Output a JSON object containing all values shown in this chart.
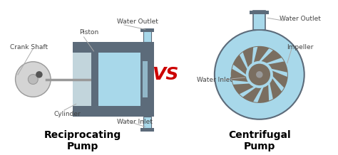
{
  "bg_color": "#ffffff",
  "vs_color": "#cc0000",
  "vs_text": "VS",
  "vs_fontsize": 18,
  "label_color": "#444444",
  "label_fontsize": 6.5,
  "title_left": "Reciprocating\nPump",
  "title_right": "Centrifugal\nPump",
  "title_fontsize": 10,
  "pump_blue": "#a8d8ea",
  "pump_dark": "#5c6b7a",
  "pump_light_gray": "#d4d4d4",
  "pump_mid_gray": "#999999",
  "impeller_dark": "#7a6e60",
  "arrow_color": "#aaaaaa",
  "arrow_lw": 0.7
}
